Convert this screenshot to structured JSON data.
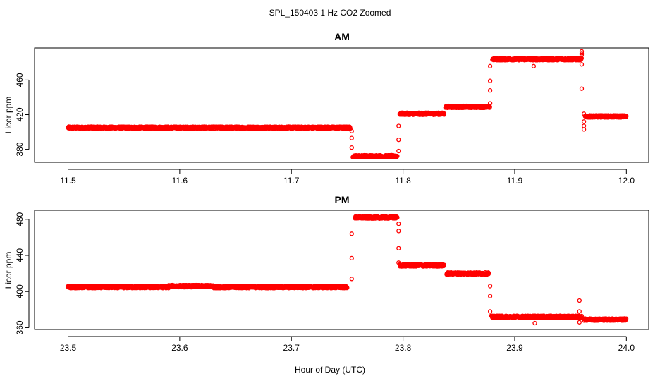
{
  "figure": {
    "title": "SPL_150403  1 Hz CO2 Zoomed",
    "xlabel": "Hour of Day (UTC)"
  },
  "chart_data": [
    {
      "type": "scatter",
      "title": "AM",
      "xlabel": "Hour of Day (UTC)",
      "ylabel": "Licor ppm",
      "xlim": [
        11.47,
        12.02
      ],
      "ylim": [
        365,
        497
      ],
      "xticks": [
        11.5,
        11.6,
        11.7,
        11.8,
        11.9,
        12.0
      ],
      "xtick_labels": [
        "11.5",
        "11.6",
        "11.7",
        "11.8",
        "11.9",
        "12.0"
      ],
      "yticks": [
        380,
        420,
        460
      ],
      "ytick_labels": [
        "380",
        "420",
        "460"
      ],
      "grid": false,
      "color": "#ff0000",
      "segments": [
        {
          "x0": 11.5,
          "x1": 11.753,
          "y": 405
        },
        {
          "x0": 11.755,
          "x1": 11.795,
          "y": 372
        },
        {
          "x0": 11.797,
          "x1": 11.837,
          "y": 421
        },
        {
          "x0": 11.838,
          "x1": 11.878,
          "y": 429
        },
        {
          "x0": 11.88,
          "x1": 11.96,
          "y": 484
        },
        {
          "x0": 11.963,
          "x1": 12.0,
          "y": 418
        }
      ],
      "transitions": [
        {
          "x": 11.754,
          "y": [
            401,
            393,
            382
          ]
        },
        {
          "x": 11.796,
          "y": [
            378,
            391,
            407
          ]
        },
        {
          "x": 11.878,
          "y": [
            433,
            448,
            459,
            476
          ]
        },
        {
          "x": 11.917,
          "y": [
            476
          ]
        },
        {
          "x": 11.96,
          "y": [
            489,
            491,
            493,
            478,
            450
          ]
        },
        {
          "x": 11.962,
          "y": [
            421,
            412,
            407,
            403
          ]
        }
      ]
    },
    {
      "type": "scatter",
      "title": "PM",
      "xlabel": "Hour of Day (UTC)",
      "ylabel": "Licor ppm",
      "xlim": [
        23.47,
        24.02
      ],
      "ylim": [
        358,
        490
      ],
      "xticks": [
        23.5,
        23.6,
        23.7,
        23.8,
        23.9,
        24.0
      ],
      "xtick_labels": [
        "23.5",
        "23.6",
        "23.7",
        "23.8",
        "23.9",
        "24.0"
      ],
      "yticks": [
        360,
        400,
        440,
        480
      ],
      "ytick_labels": [
        "360",
        "400",
        "440",
        "480"
      ],
      "grid": false,
      "color": "#ff0000",
      "segments": [
        {
          "x0": 23.5,
          "x1": 23.59,
          "y": 405
        },
        {
          "x0": 23.59,
          "x1": 23.63,
          "y": 406
        },
        {
          "x0": 23.63,
          "x1": 23.75,
          "y": 405
        },
        {
          "x0": 23.757,
          "x1": 23.795,
          "y": 482
        },
        {
          "x0": 23.797,
          "x1": 23.837,
          "y": 429
        },
        {
          "x0": 23.839,
          "x1": 23.877,
          "y": 420
        },
        {
          "x0": 23.879,
          "x1": 23.96,
          "y": 372
        },
        {
          "x0": 23.962,
          "x1": 24.0,
          "y": 369
        }
      ],
      "transitions": [
        {
          "x": 23.754,
          "y": [
            414,
            437,
            464
          ]
        },
        {
          "x": 23.796,
          "y": [
            475,
            467,
            448,
            432
          ]
        },
        {
          "x": 23.878,
          "y": [
            406,
            395,
            378
          ]
        },
        {
          "x": 23.918,
          "y": [
            365
          ]
        },
        {
          "x": 23.958,
          "y": [
            366,
            390,
            378
          ]
        }
      ]
    }
  ]
}
